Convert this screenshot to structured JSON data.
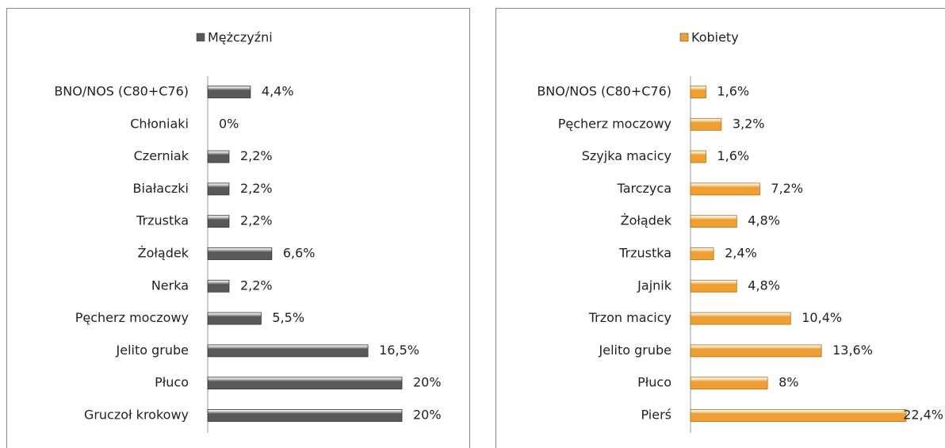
{
  "chart_data": [
    {
      "type": "bar",
      "orientation": "horizontal",
      "categories": [
        "BNO/NOS (C80+C76)",
        "Chłoniaki",
        "Czerniak",
        "Białaczki",
        "Trzustka",
        "Żołądek",
        "Nerka",
        "Pęcherz moczowy",
        "Jelito grube",
        "Płuco",
        "Gruczoł krokowy"
      ],
      "series": [
        {
          "name": "Mężczyźni",
          "color": "#595959",
          "values": [
            4.4,
            0,
            2.2,
            2.2,
            2.2,
            6.6,
            2.2,
            5.5,
            16.5,
            20,
            20
          ],
          "value_labels": [
            "4,4%",
            "0%",
            "2,2%",
            "2,2%",
            "2,2%",
            "6,6%",
            "2,2%",
            "5,5%",
            "16,5%",
            "20%",
            "20%"
          ]
        }
      ]
    },
    {
      "type": "bar",
      "orientation": "horizontal",
      "categories": [
        "BNO/NOS (C80+C76)",
        "Pęcherz moczowy",
        "Szyjka macicy",
        "Tarczyca",
        "Żołądek",
        "Trzustka",
        "Jajnik",
        "Trzon macicy",
        "Jelito grube",
        "Płuco",
        "Pierś"
      ],
      "series": [
        {
          "name": "Kobiety",
          "color": "#f0a030",
          "values": [
            1.6,
            3.2,
            1.6,
            7.2,
            4.8,
            2.4,
            4.8,
            10.4,
            13.6,
            8,
            22.4
          ],
          "value_labels": [
            "1,6%",
            "3,2%",
            "1,6%",
            "7,2%",
            "4,8%",
            "2,4%",
            "4,8%",
            "10,4%",
            "13,6%",
            "8%",
            "22,4%"
          ]
        }
      ]
    }
  ]
}
